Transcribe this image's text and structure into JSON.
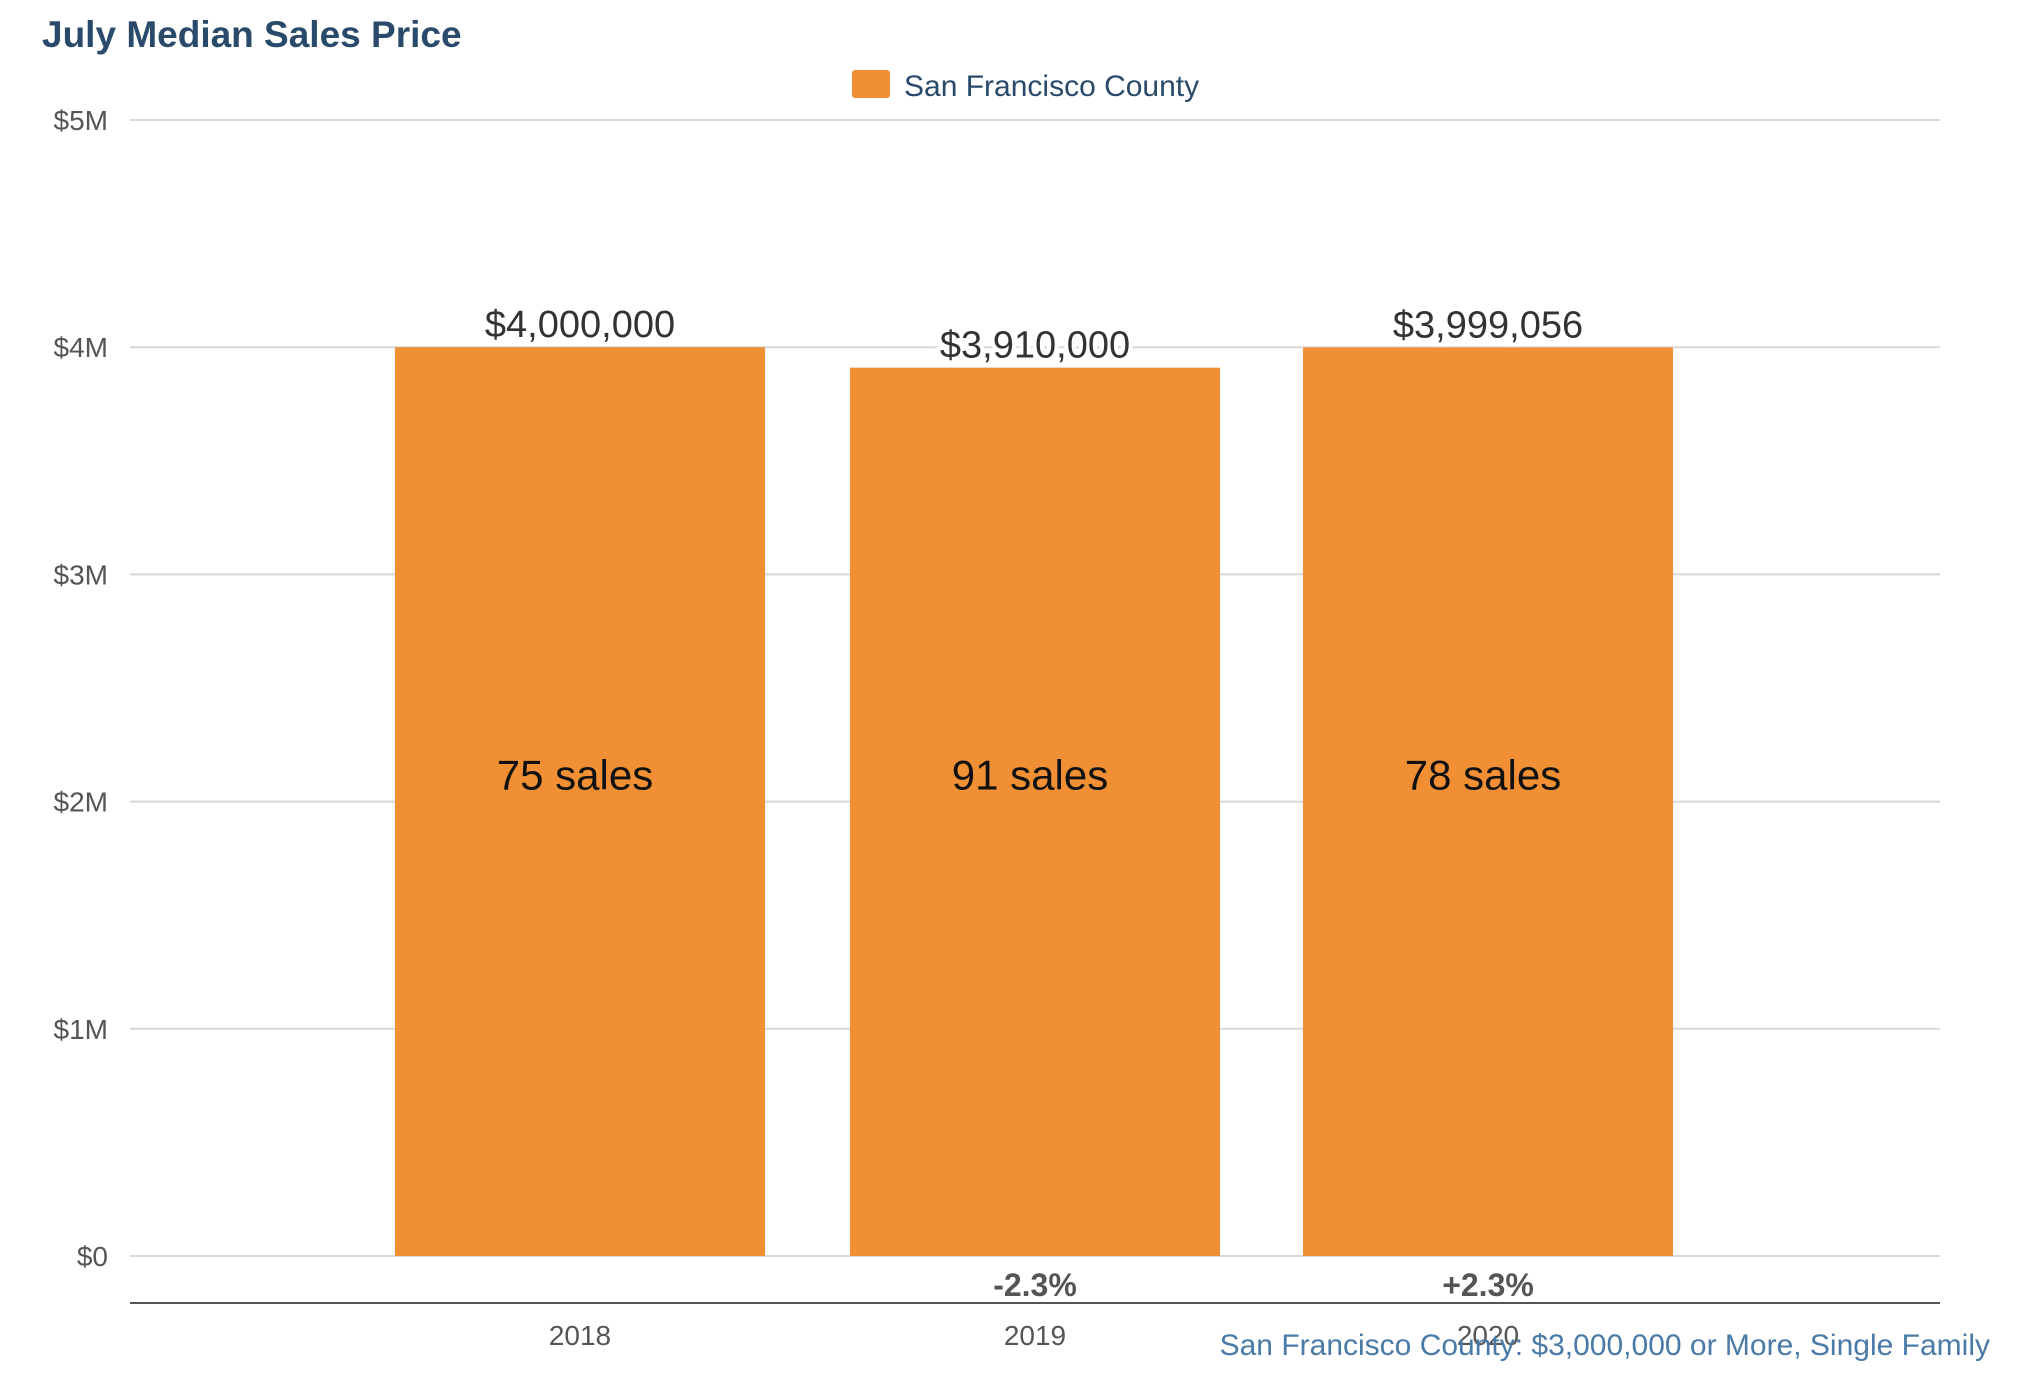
{
  "chart_data": {
    "type": "bar",
    "title": "July Median Sales Price",
    "legend": {
      "position": "top-center",
      "entries": [
        "San Francisco County"
      ]
    },
    "categories": [
      "2018",
      "2019",
      "2020"
    ],
    "series": [
      {
        "name": "San Francisco County",
        "color": "#F08F33",
        "values": [
          4000000,
          3910000,
          3999056
        ],
        "value_labels": [
          "$4,000,000",
          "$3,910,000",
          "$3,999,056"
        ],
        "inner_labels": [
          "75 sales",
          "91 sales",
          "78 sales"
        ]
      }
    ],
    "change_labels": [
      "",
      "-2.3%",
      "+2.3%"
    ],
    "ylim": [
      0,
      5000000
    ],
    "y_ticks": [
      0,
      1000000,
      2000000,
      3000000,
      4000000,
      5000000
    ],
    "y_tick_labels": [
      "$0",
      "$1M",
      "$2M",
      "$3M",
      "$4M",
      "$5M"
    ],
    "xlabel": "",
    "ylabel": "",
    "grid": true,
    "footnote": "San Francisco County: $3,000,000 or More, Single Family"
  },
  "colors": {
    "title": "#2a4a6b",
    "legend_text": "#2a4a6b",
    "footnote": "#4a7aa8",
    "axis_text": "#555555",
    "value_label": "#333333",
    "inner_label": "#111111",
    "change_label": "#555555",
    "grid": "#d8d8d8",
    "axis_line": "#555555"
  }
}
